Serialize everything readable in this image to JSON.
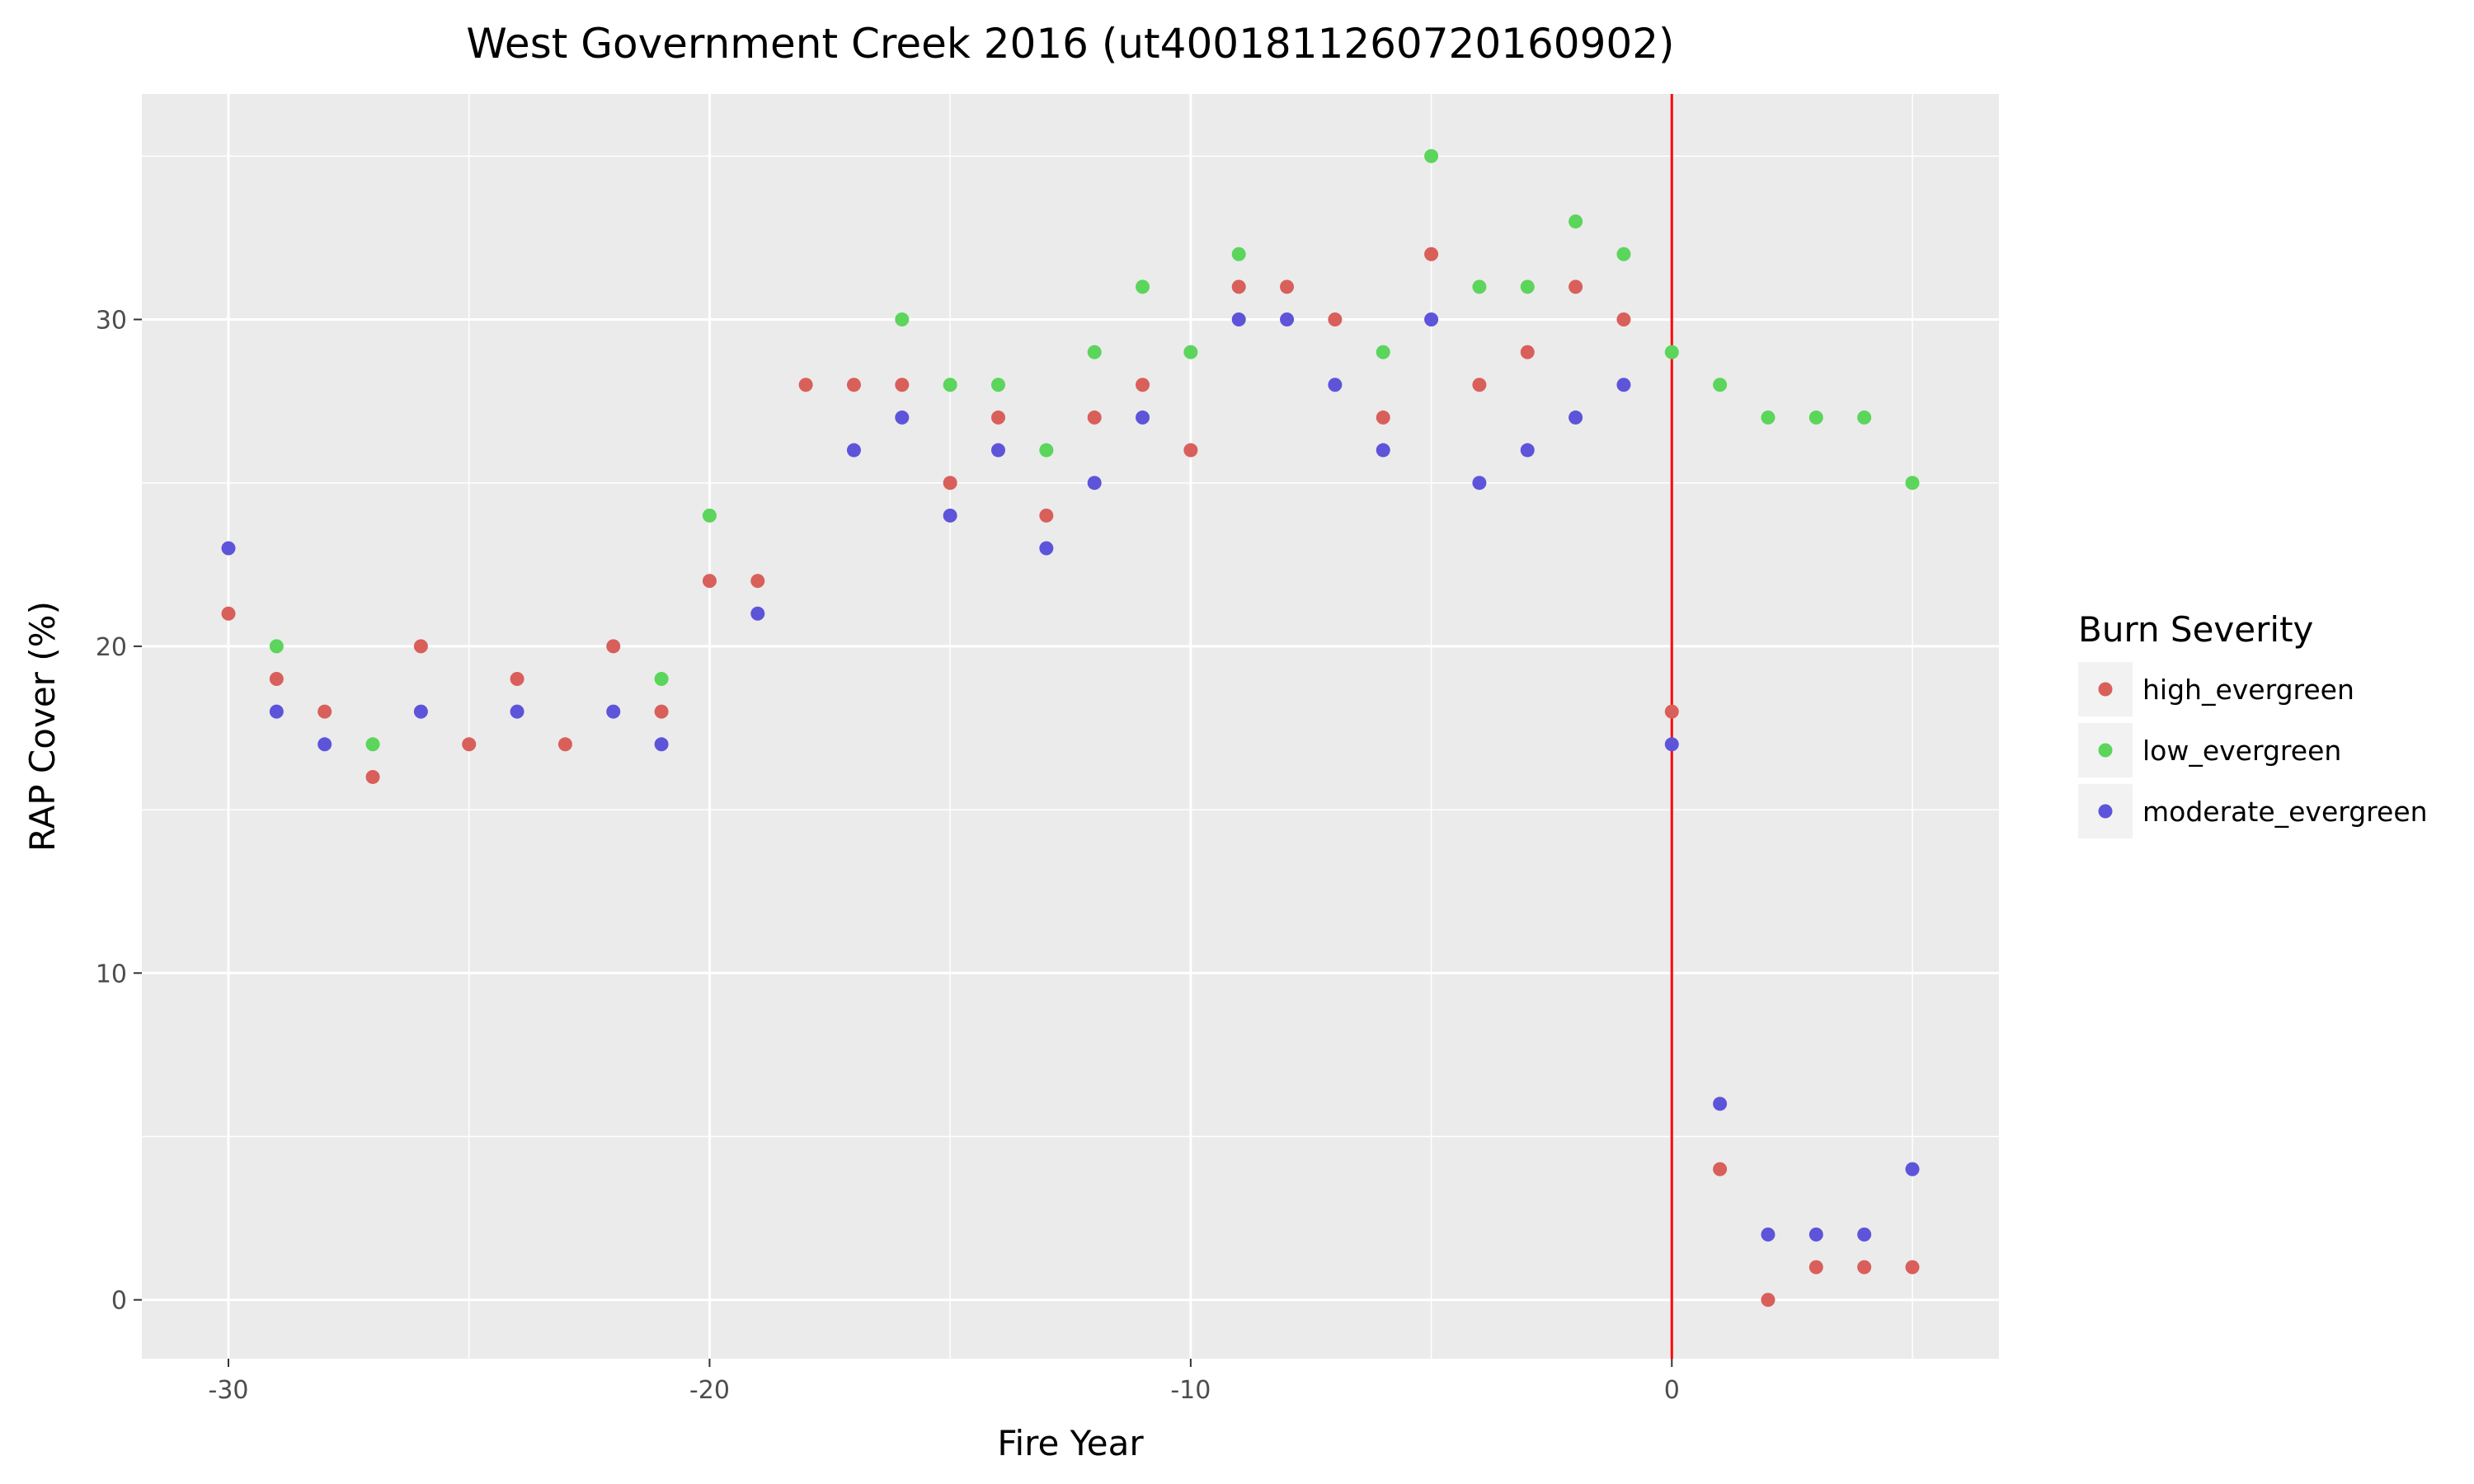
{
  "chart_data": {
    "type": "scatter",
    "title": "West Government Creek 2016 (ut4001811260720160902)",
    "xlabel": "Fire Year",
    "ylabel": "RAP Cover (%)",
    "xlim": [
      -31.8,
      6.8
    ],
    "ylim": [
      -1.8,
      36.9
    ],
    "x_ticks": [
      -30,
      -20,
      -10,
      0
    ],
    "x_tick_labels": [
      "-30",
      "-20",
      "-10",
      "0"
    ],
    "y_ticks": [
      0,
      10,
      20,
      30
    ],
    "y_tick_labels": [
      "0",
      "10",
      "20",
      "30"
    ],
    "x_minor": [
      -25,
      -15,
      -5,
      5
    ],
    "y_minor": [
      5,
      15,
      25,
      35
    ],
    "grid": true,
    "background": "#ebebeb",
    "legend": {
      "title": "Burn Severity",
      "position": "right"
    },
    "reference_line": {
      "x": 0,
      "color": "#ff0000"
    },
    "series": [
      {
        "name": "high_evergreen",
        "color": "#d95f5a",
        "points": [
          [
            -30,
            21
          ],
          [
            -29,
            19
          ],
          [
            -28,
            18
          ],
          [
            -27,
            16
          ],
          [
            -26,
            20
          ],
          [
            -25,
            17
          ],
          [
            -24,
            19
          ],
          [
            -23,
            17
          ],
          [
            -22,
            20
          ],
          [
            -21,
            18
          ],
          [
            -20,
            22
          ],
          [
            -19,
            22
          ],
          [
            -18,
            28
          ],
          [
            -17,
            28
          ],
          [
            -16,
            28
          ],
          [
            -15,
            25
          ],
          [
            -14,
            27
          ],
          [
            -13,
            24
          ],
          [
            -12,
            27
          ],
          [
            -11,
            28
          ],
          [
            -10,
            26
          ],
          [
            -9,
            31
          ],
          [
            -8,
            31
          ],
          [
            -7,
            30
          ],
          [
            -6,
            27
          ],
          [
            -5,
            32
          ],
          [
            -4,
            28
          ],
          [
            -3,
            29
          ],
          [
            -2,
            31
          ],
          [
            -1,
            30
          ],
          [
            0,
            18
          ],
          [
            1,
            4
          ],
          [
            2,
            0
          ],
          [
            3,
            1
          ],
          [
            4,
            1
          ],
          [
            5,
            1
          ]
        ]
      },
      {
        "name": "low_evergreen",
        "color": "#5bd55b",
        "points": [
          [
            -29,
            20
          ],
          [
            -27,
            17
          ],
          [
            -21,
            19
          ],
          [
            -20,
            24
          ],
          [
            -16,
            30
          ],
          [
            -15,
            28
          ],
          [
            -14,
            28
          ],
          [
            -13,
            26
          ],
          [
            -12,
            29
          ],
          [
            -11,
            31
          ],
          [
            -10,
            29
          ],
          [
            -9,
            32
          ],
          [
            -6,
            29
          ],
          [
            -5,
            35
          ],
          [
            -4,
            31
          ],
          [
            -3,
            31
          ],
          [
            -2,
            33
          ],
          [
            -1,
            32
          ],
          [
            0,
            29
          ],
          [
            1,
            28
          ],
          [
            2,
            27
          ],
          [
            3,
            27
          ],
          [
            4,
            27
          ],
          [
            5,
            25
          ]
        ]
      },
      {
        "name": "moderate_evergreen",
        "color": "#5d54da",
        "points": [
          [
            -30,
            23
          ],
          [
            -29,
            18
          ],
          [
            -28,
            17
          ],
          [
            -26,
            18
          ],
          [
            -24,
            18
          ],
          [
            -22,
            18
          ],
          [
            -21,
            17
          ],
          [
            -19,
            21
          ],
          [
            -17,
            26
          ],
          [
            -16,
            27
          ],
          [
            -15,
            24
          ],
          [
            -14,
            26
          ],
          [
            -13,
            23
          ],
          [
            -12,
            25
          ],
          [
            -11,
            27
          ],
          [
            -9,
            30
          ],
          [
            -8,
            30
          ],
          [
            -7,
            28
          ],
          [
            -6,
            26
          ],
          [
            -5,
            30
          ],
          [
            -4,
            25
          ],
          [
            -3,
            26
          ],
          [
            -2,
            27
          ],
          [
            -1,
            28
          ],
          [
            0,
            17
          ],
          [
            1,
            6
          ],
          [
            2,
            2
          ],
          [
            3,
            2
          ],
          [
            4,
            2
          ],
          [
            5,
            4
          ]
        ]
      }
    ]
  }
}
